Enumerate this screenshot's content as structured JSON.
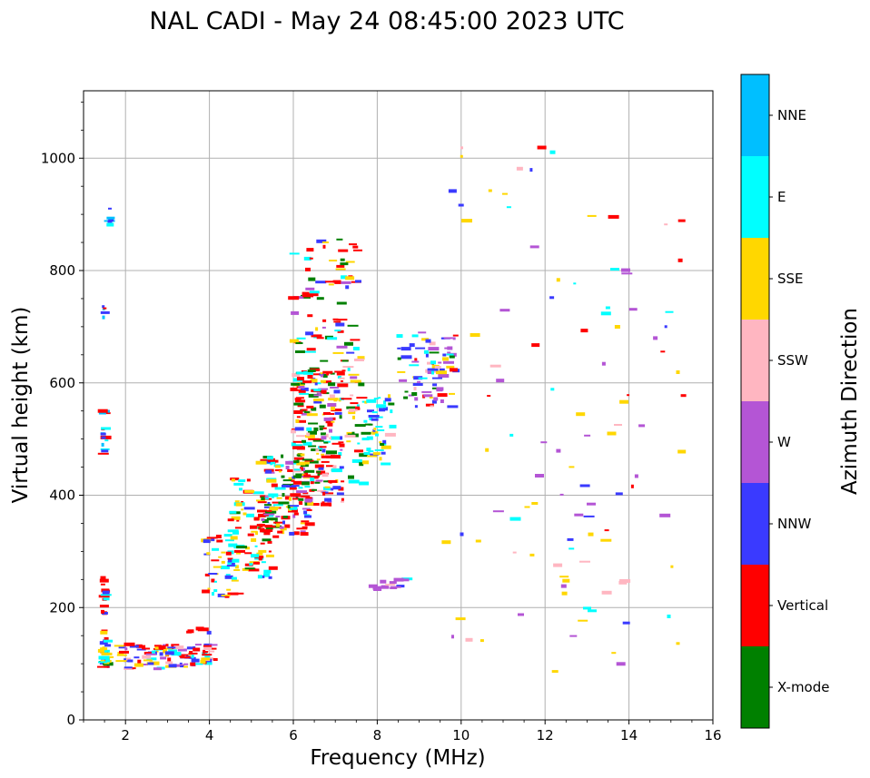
{
  "chart_data": {
    "type": "scatter",
    "title": "NAL CADI - May 24 08:45:00 2023 UTC",
    "xlabel": "Frequency (MHz)",
    "ylabel": "Virtual height (km)",
    "xlim": [
      1.0,
      16.0
    ],
    "ylim": [
      0,
      1120
    ],
    "xticks": [
      2,
      4,
      6,
      8,
      10,
      12,
      14,
      16
    ],
    "yticks": [
      0,
      200,
      400,
      600,
      800,
      1000
    ],
    "grid": true,
    "colorbar": {
      "label": "Azimuth Direction",
      "categories": [
        {
          "name": "X-mode",
          "color": "#008000"
        },
        {
          "name": "Vertical",
          "color": "#ff0000"
        },
        {
          "name": "NNW",
          "color": "#3a3aff"
        },
        {
          "name": "W",
          "color": "#b455d5"
        },
        {
          "name": "SSW",
          "color": "#ffb6c1"
        },
        {
          "name": "SSE",
          "color": "#ffd700"
        },
        {
          "name": "E",
          "color": "#00ffff"
        },
        {
          "name": "NNE",
          "color": "#00bfff"
        }
      ]
    },
    "clusters": [
      {
        "f": [
          1.45,
          1.6
        ],
        "h": [
          90,
          160
        ],
        "n": 30,
        "mix": [
          0,
          1,
          2,
          5,
          5,
          6,
          6
        ]
      },
      {
        "f": [
          1.45,
          1.55
        ],
        "h": [
          180,
          280
        ],
        "n": 14,
        "mix": [
          1,
          1,
          6,
          2
        ]
      },
      {
        "f": [
          1.45,
          1.55
        ],
        "h": [
          470,
          550
        ],
        "n": 16,
        "mix": [
          6,
          7,
          7,
          2,
          1
        ]
      },
      {
        "f": [
          1.45,
          1.55
        ],
        "h": [
          715,
          750
        ],
        "n": 5,
        "mix": [
          1,
          7,
          2
        ]
      },
      {
        "f": [
          1.6,
          1.68
        ],
        "h": [
          880,
          930
        ],
        "n": 6,
        "mix": [
          6,
          7,
          2
        ]
      },
      {
        "f": [
          1.85,
          4.2
        ],
        "h": [
          90,
          135
        ],
        "n": 110,
        "mix": [
          1,
          1,
          1,
          2,
          2,
          4,
          5,
          5,
          6,
          3
        ]
      },
      {
        "f": [
          3.5,
          4.0
        ],
        "h": [
          145,
          170
        ],
        "n": 5,
        "mix": [
          2,
          1
        ]
      },
      {
        "f": [
          3.9,
          4.7
        ],
        "h": [
          215,
          330
        ],
        "n": 45,
        "mix": [
          1,
          1,
          6,
          6,
          6,
          5,
          5,
          2
        ]
      },
      {
        "f": [
          4.5,
          5.6
        ],
        "h": [
          250,
          430
        ],
        "n": 90,
        "mix": [
          1,
          1,
          1,
          6,
          6,
          6,
          5,
          5,
          2,
          0
        ]
      },
      {
        "f": [
          5.2,
          6.4
        ],
        "h": [
          330,
          470
        ],
        "n": 120,
        "mix": [
          1,
          1,
          1,
          1,
          5,
          5,
          6,
          2,
          0,
          0,
          3
        ]
      },
      {
        "f": [
          6.0,
          7.2
        ],
        "h": [
          380,
          620
        ],
        "n": 220,
        "mix": [
          1,
          1,
          1,
          1,
          0,
          0,
          0,
          5,
          6,
          2,
          3,
          4
        ]
      },
      {
        "f": [
          6.0,
          7.6
        ],
        "h": [
          600,
          860
        ],
        "n": 90,
        "mix": [
          1,
          1,
          1,
          1,
          0,
          0,
          2,
          3,
          5,
          6
        ]
      },
      {
        "f": [
          7.2,
          7.7
        ],
        "h": [
          420,
          650
        ],
        "n": 35,
        "mix": [
          1,
          0,
          5,
          4,
          6
        ]
      },
      {
        "f": [
          7.7,
          8.4
        ],
        "h": [
          455,
          580
        ],
        "n": 50,
        "mix": [
          6,
          6,
          6,
          4,
          5,
          2,
          0
        ]
      },
      {
        "f": [
          7.9,
          8.8
        ],
        "h": [
          228,
          252
        ],
        "n": 14,
        "mix": [
          3,
          3,
          6,
          2,
          4
        ]
      },
      {
        "f": [
          8.5,
          9.9
        ],
        "h": [
          555,
          690
        ],
        "n": 80,
        "mix": [
          3,
          3,
          3,
          2,
          2,
          5,
          1,
          4,
          6,
          0
        ]
      },
      {
        "f": [
          9.6,
          14.2
        ],
        "h": [
          85,
          1020
        ],
        "n": 75,
        "mix": [
          3,
          3,
          3,
          3,
          5,
          5,
          5,
          4,
          4,
          6,
          2,
          1
        ]
      },
      {
        "f": [
          12.5,
          15.3
        ],
        "h": [
          85,
          900
        ],
        "n": 30,
        "mix": [
          5,
          5,
          3,
          3,
          2,
          4,
          1,
          6
        ]
      }
    ]
  }
}
